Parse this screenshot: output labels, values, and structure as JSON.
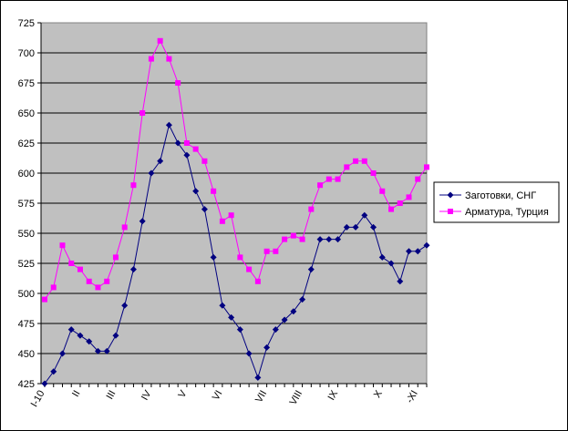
{
  "chart_data": {
    "type": "line",
    "title": "",
    "xlabel": "",
    "ylabel": "",
    "ylim": [
      425,
      725
    ],
    "y_ticks": [
      "425",
      "450",
      "475",
      "500",
      "525",
      "550",
      "575",
      "600",
      "625",
      "650",
      "675",
      "700",
      "725"
    ],
    "x_tick_labels": [
      "I-10",
      "II",
      "III",
      "IV",
      "V",
      "VI",
      "VII",
      "VIII",
      "IX",
      "X",
      "-XI"
    ],
    "x_tick_positions": [
      0,
      4,
      8,
      12,
      16,
      20,
      25,
      29,
      33,
      38,
      42
    ],
    "grid": "horizontal",
    "plot_background": "#c0c0c0",
    "legend_position": "right",
    "series": [
      {
        "name": "Заготовки, СНГ",
        "color": "#000080",
        "marker": "diamond",
        "values": [
          425,
          435,
          450,
          470,
          465,
          460,
          452,
          452,
          465,
          490,
          520,
          560,
          600,
          610,
          640,
          625,
          615,
          585,
          570,
          530,
          490,
          480,
          470,
          450,
          430,
          455,
          470,
          478,
          485,
          495,
          520,
          545,
          545,
          545,
          555,
          555,
          565,
          555,
          530,
          525,
          510,
          535,
          535,
          540
        ]
      },
      {
        "name": "Арматура, Турция",
        "color": "#ff00ff",
        "marker": "square",
        "values": [
          495,
          505,
          540,
          525,
          520,
          510,
          505,
          510,
          530,
          555,
          590,
          650,
          695,
          710,
          695,
          675,
          625,
          620,
          610,
          585,
          560,
          565,
          530,
          520,
          510,
          535,
          535,
          545,
          548,
          545,
          570,
          590,
          595,
          595,
          605,
          610,
          610,
          600,
          585,
          570,
          575,
          580,
          595,
          605
        ]
      }
    ]
  }
}
